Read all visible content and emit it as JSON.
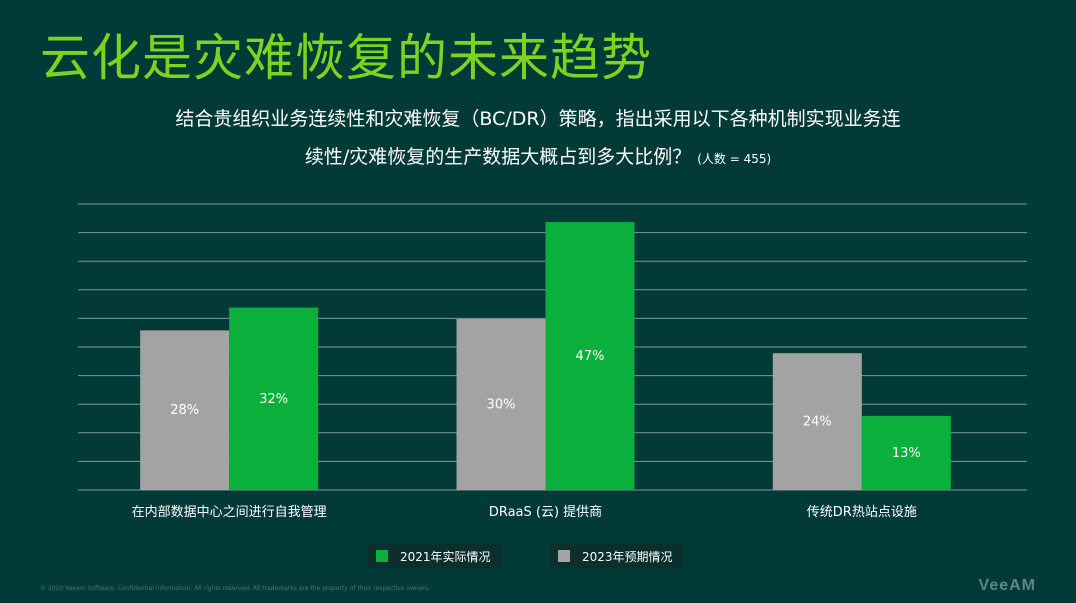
{
  "slide": {
    "title": "云化是灾难恢复的未来趋势",
    "subtitle_line1": "结合贵组织业务连续性和灾难恢复（BC/DR）策略，指出采用以下各种机制实现业务连",
    "subtitle_line2": "续性/灾难恢复的生产数据大概占到多大比例？",
    "respondents": "(人数 = 455)",
    "footer": "© 2020 Veeam Software. Confidential information. All rights reserved. All trademarks are the property of their respective owners.",
    "logo": "VeeAM"
  },
  "colors": {
    "background": "#023a37",
    "title": "#7ed321",
    "series_2021": "#0ab03b",
    "series_2023": "#a3a3a3",
    "gridline": "#7b9a97"
  },
  "chart_data": {
    "type": "bar",
    "categories": [
      "在内部数据中心之间进行自我管理",
      "DRaaS (云) 提供商",
      "传统DR热站点设施"
    ],
    "series": [
      {
        "name": "2023年预期情况",
        "values": [
          28,
          30,
          24
        ],
        "labels": [
          "28%",
          "30%",
          "24%"
        ],
        "color": "#a3a3a3"
      },
      {
        "name": "2021年实际情况",
        "values": [
          32,
          47,
          13
        ],
        "labels": [
          "32%",
          "47%",
          "13%"
        ],
        "color": "#0ab03b"
      }
    ],
    "ylim": [
      0,
      50
    ],
    "gridlines": 11,
    "grid": true,
    "legend": [
      {
        "name": "2021年实际情况",
        "color": "#0ab03b"
      },
      {
        "name": "2023年预期情况",
        "color": "#a3a3a3"
      }
    ],
    "legend_position": "bottom"
  }
}
